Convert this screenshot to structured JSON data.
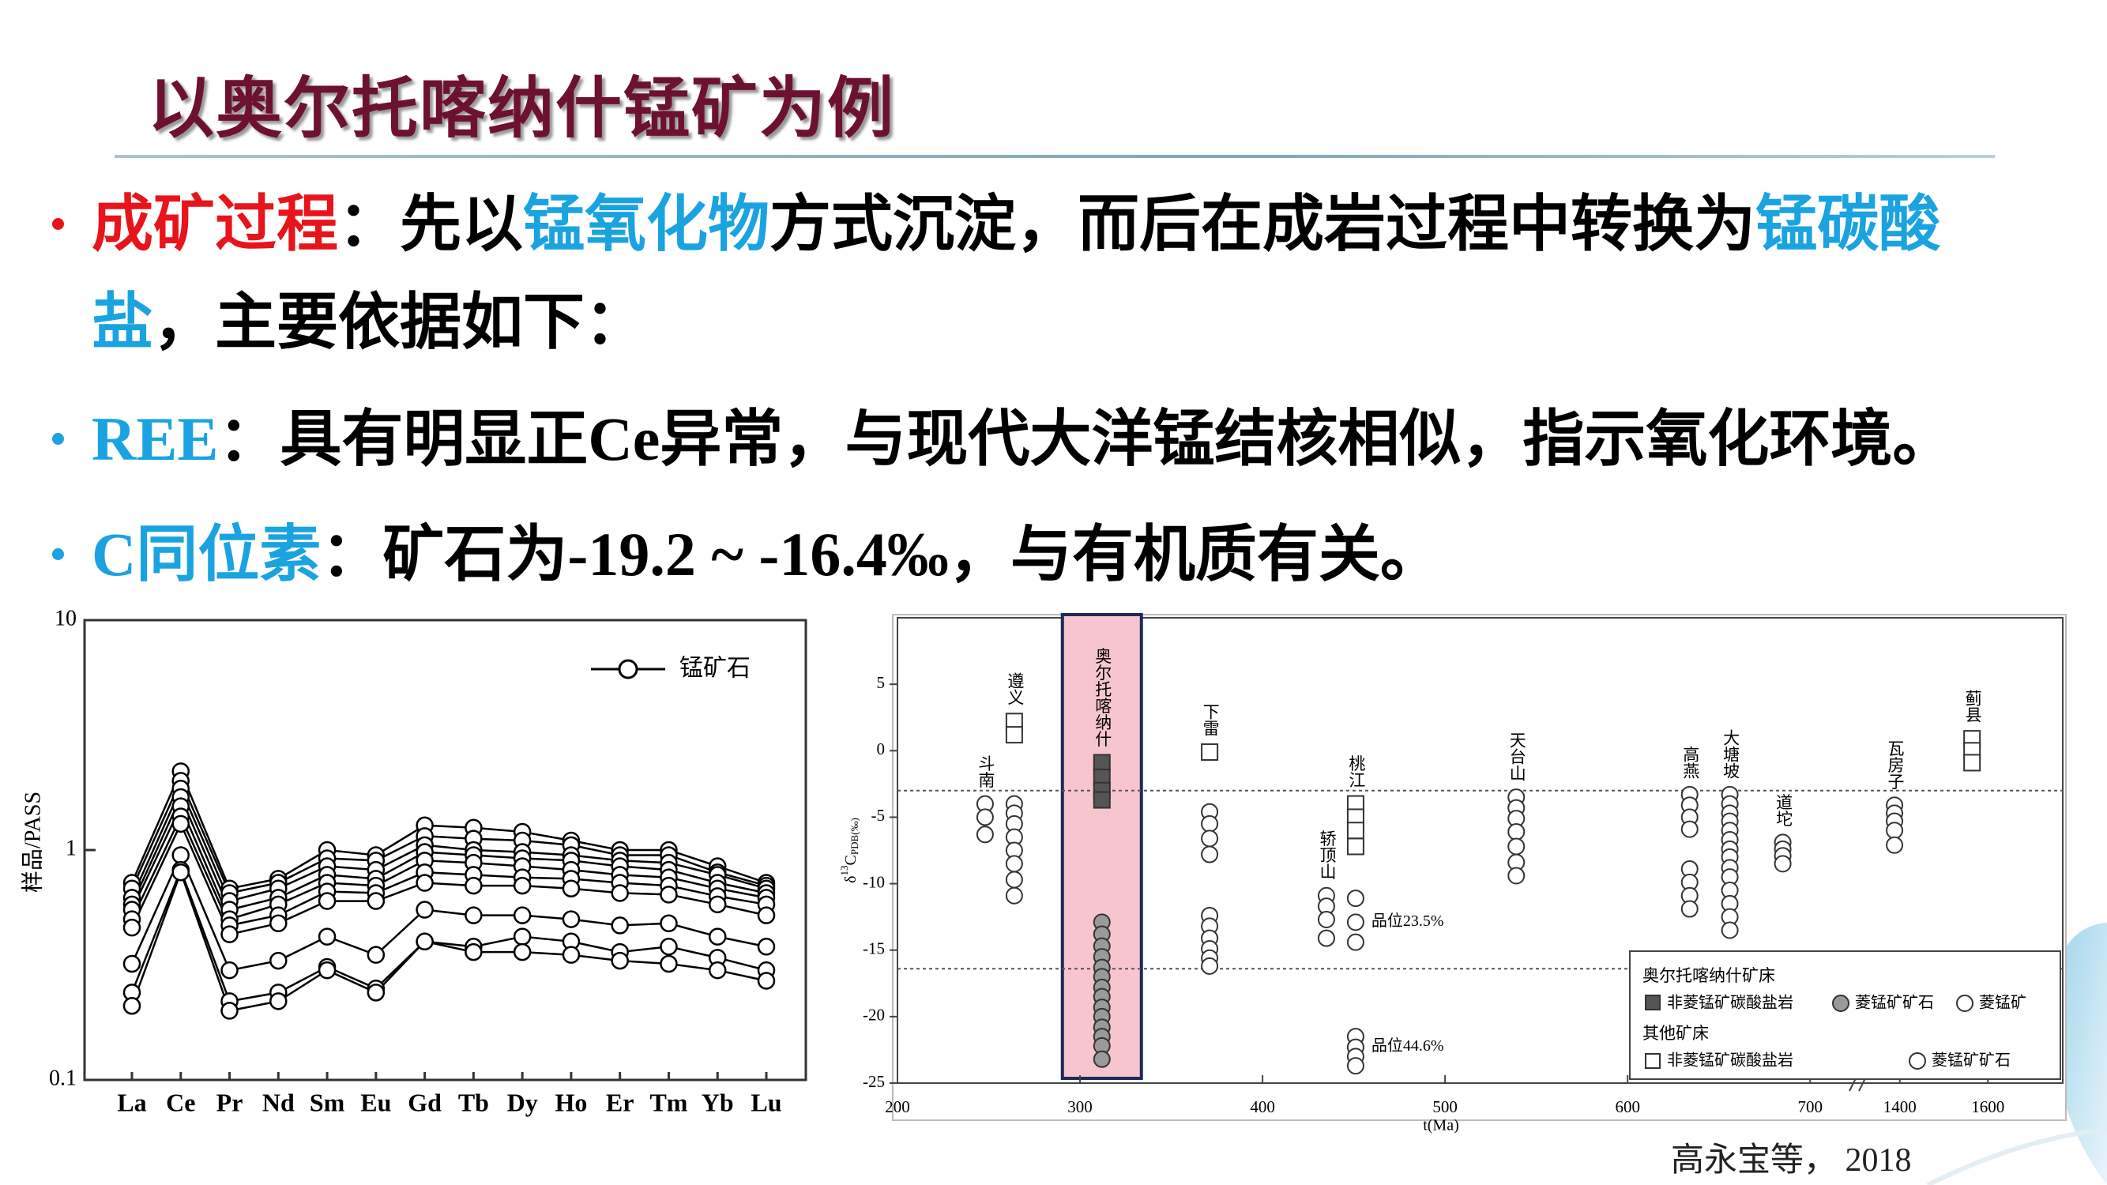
{
  "slide": {
    "title": "以奥尔托喀纳什锰矿为例",
    "bullets": [
      {
        "color": "#e8141b",
        "runs": [
          {
            "text": "成矿过程",
            "color": "#e8141b"
          },
          {
            "text": "：先以",
            "color": "#000000"
          },
          {
            "text": "锰氧化物",
            "color": "#1aa3e0"
          },
          {
            "text": "方式沉淀，而后在成岩过程中转换为",
            "color": "#000000"
          },
          {
            "text": "锰碳酸盐",
            "color": "#1aa3e0"
          },
          {
            "text": "，主要依据如下：",
            "color": "#000000"
          }
        ]
      },
      {
        "color": "#1aa3e0",
        "runs": [
          {
            "text": "REE",
            "color": "#1aa3e0"
          },
          {
            "text": "：具有明显正Ce异常，与现代大洋锰结核相似，指示氧化环境。",
            "color": "#000000"
          }
        ]
      },
      {
        "color": "#1aa3e0",
        "runs": [
          {
            "text": "C同位素",
            "color": "#1aa3e0"
          },
          {
            "text": "：矿石为-19.2 ~ -16.4‰，与有机质有关。",
            "color": "#000000"
          }
        ]
      }
    ],
    "citation": "高永宝等，  2018"
  },
  "chart_data": [
    {
      "type": "line",
      "y_label": "样品/PASS",
      "log_scale": true,
      "categories": [
        "La",
        "Ce",
        "Pr",
        "Nd",
        "Sm",
        "Eu",
        "Gd",
        "Tb",
        "Dy",
        "Ho",
        "Er",
        "Tm",
        "Yb",
        "Lu"
      ],
      "ylim": [
        0.1,
        10
      ],
      "yticks": [
        0.1,
        1,
        10
      ],
      "legend_label": "锰矿石",
      "color": "#000000",
      "series": [
        {
          "values": [
            0.72,
            2.2,
            0.68,
            0.75,
            1.0,
            0.95,
            1.28,
            1.25,
            1.2,
            1.1,
            1.0,
            1.0,
            0.85,
            0.72
          ]
        },
        {
          "values": [
            0.68,
            2.0,
            0.65,
            0.72,
            0.92,
            0.9,
            1.15,
            1.12,
            1.1,
            1.05,
            0.95,
            0.95,
            0.8,
            0.7
          ]
        },
        {
          "values": [
            0.62,
            1.85,
            0.6,
            0.68,
            0.85,
            0.82,
            1.05,
            1.0,
            0.98,
            0.95,
            0.9,
            0.88,
            0.78,
            0.68
          ]
        },
        {
          "values": [
            0.58,
            1.7,
            0.55,
            0.62,
            0.78,
            0.75,
            0.98,
            0.95,
            0.92,
            0.9,
            0.85,
            0.82,
            0.72,
            0.65
          ]
        },
        {
          "values": [
            0.55,
            1.55,
            0.5,
            0.58,
            0.72,
            0.7,
            0.9,
            0.88,
            0.85,
            0.82,
            0.78,
            0.76,
            0.68,
            0.62
          ]
        },
        {
          "values": [
            0.5,
            1.4,
            0.47,
            0.52,
            0.66,
            0.65,
            0.8,
            0.78,
            0.76,
            0.75,
            0.72,
            0.7,
            0.63,
            0.58
          ]
        },
        {
          "values": [
            0.46,
            1.3,
            0.43,
            0.48,
            0.6,
            0.6,
            0.72,
            0.7,
            0.7,
            0.68,
            0.65,
            0.64,
            0.58,
            0.52
          ]
        },
        {
          "values": [
            0.32,
            0.95,
            0.3,
            0.33,
            0.42,
            0.35,
            0.55,
            0.52,
            0.52,
            0.5,
            0.47,
            0.48,
            0.42,
            0.38
          ]
        },
        {
          "values": [
            0.24,
            0.82,
            0.22,
            0.24,
            0.31,
            0.25,
            0.4,
            0.38,
            0.42,
            0.4,
            0.36,
            0.38,
            0.34,
            0.3
          ]
        },
        {
          "values": [
            0.21,
            0.8,
            0.2,
            0.22,
            0.3,
            0.24,
            0.4,
            0.36,
            0.36,
            0.35,
            0.33,
            0.32,
            0.3,
            0.27
          ]
        }
      ]
    },
    {
      "type": "scatter",
      "y_label": {
        "prefix": "δ",
        "sup": "13",
        "main": "C",
        "sub": "PDB(‰)"
      },
      "x_label": "t(Ma)",
      "xlim": [
        200,
        1770
      ],
      "x_break": [
        725,
        1300
      ],
      "xticks": [
        200,
        300,
        400,
        500,
        600,
        700,
        1400,
        1600
      ],
      "ylim": [
        -25,
        10
      ],
      "yticks": [
        5,
        0,
        -5,
        -10,
        -15,
        -20,
        -25
      ],
      "reference_lines": [
        -3,
        -16.4
      ],
      "colors": {
        "main_square": "#555555",
        "main_circle": "#9a9a9a",
        "highlight": "#f7c5ce"
      },
      "groups": [
        {
          "label": "斗南",
          "x": 248,
          "squares": [],
          "circles": [
            -4.0,
            -5.0,
            -6.3
          ]
        },
        {
          "label": "遵义",
          "x": 264,
          "squares": [
            2.2,
            1.2
          ],
          "circles": [
            -4.0,
            -4.7,
            -5.5,
            -6.5,
            -7.5,
            -8.5,
            -9.7,
            -10.9
          ]
        },
        {
          "label": "奥尔托喀纳什",
          "x": 312,
          "highlight": true,
          "squares": [
            -0.9,
            -2.0,
            -3.0,
            -3.7
          ],
          "circles": [
            -12.9,
            -13.8,
            -14.7,
            -15.5,
            -16.3,
            -17.0,
            -17.8,
            -18.5,
            -19.3,
            -20.0,
            -20.8,
            -21.5,
            -22.2,
            -23.2
          ]
        },
        {
          "label": "下雷",
          "x": 371,
          "squares": [
            -0.1
          ],
          "circles": [
            -4.6,
            -5.5,
            -6.6,
            -7.8,
            -12.4,
            -13.2,
            -14.1,
            -14.9,
            -15.6,
            -16.2
          ]
        },
        {
          "label": "轿顶山",
          "x": 435,
          "squares": [],
          "circles": [
            -10.9,
            -11.7,
            -12.7,
            -14.1
          ]
        },
        {
          "label": "桃江",
          "x": 451,
          "squares": [
            -4.0,
            -5.0,
            -6.0,
            -7.2
          ],
          "circles": [
            -11.1,
            -12.9,
            -14.4,
            -21.5,
            -22.3,
            -23.0,
            -23.7
          ],
          "notes": [
            "品位23.5%",
            "品位44.6%"
          ]
        },
        {
          "label": "天台山",
          "x": 539,
          "squares": [],
          "circles": [
            -3.5,
            -4.3,
            -5.1,
            -6.1,
            -7.2,
            -8.4,
            -9.4
          ]
        },
        {
          "label": "高燕",
          "x": 634,
          "squares": [],
          "circles": [
            -3.3,
            -4.1,
            -5.0,
            -5.9,
            -8.9,
            -9.9,
            -10.9,
            -11.9
          ]
        },
        {
          "label": "大塘坡",
          "x": 656,
          "squares": [],
          "circles": [
            -3.3,
            -4.0,
            -4.7,
            -5.3,
            -6.0,
            -6.7,
            -7.4,
            -8.0,
            -8.8,
            -9.5,
            -10.5,
            -11.5,
            -12.5,
            -13.5
          ]
        },
        {
          "label": "道坨",
          "x": 685,
          "squares": [],
          "circles": [
            -6.9,
            -7.4,
            -7.9,
            -8.5
          ]
        },
        {
          "label": "瓦房子",
          "x": 1388,
          "squares": [],
          "circles": [
            -4.1,
            -4.7,
            -5.3,
            -6.0,
            -7.1
          ]
        },
        {
          "label": "蓟县",
          "x": 1564,
          "squares": [
            0.9,
            0,
            -0.9
          ],
          "circles": []
        }
      ],
      "legend": {
        "title1": "奥尔托喀纳什矿床",
        "items1": [
          "非菱锰矿碳酸盐岩",
          "菱锰矿矿石",
          "菱锰矿"
        ],
        "title2": "其他矿床",
        "items2": [
          "非菱锰矿碳酸盐岩",
          "菱锰矿矿石"
        ]
      }
    }
  ]
}
